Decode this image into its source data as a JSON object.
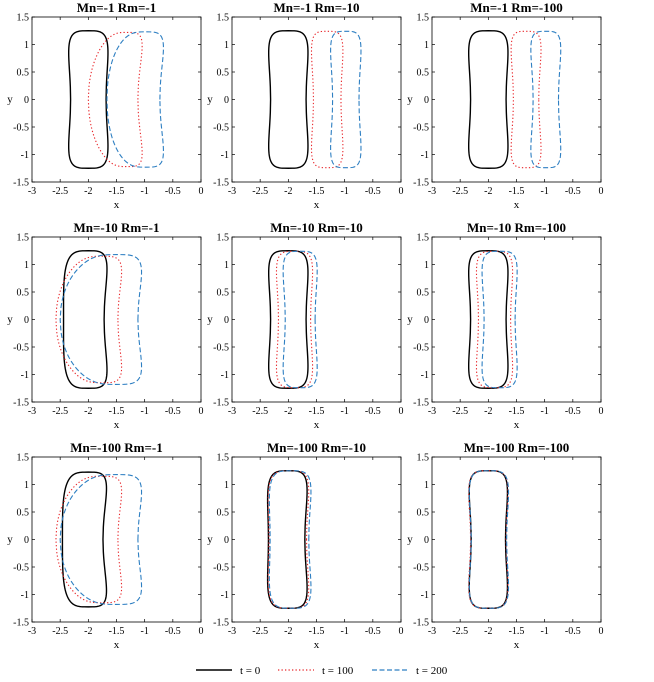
{
  "legend": {
    "placement": "bottom-center",
    "entries": [
      {
        "label": "t = 0",
        "color": "#000000",
        "dash": "solid"
      },
      {
        "label": "t = 100",
        "color": "#e8262a",
        "dash": "dotted"
      },
      {
        "label": "t = 200",
        "color": "#2e7fc2",
        "dash": "dashed"
      }
    ]
  },
  "chart_data": [
    {
      "type": "line",
      "title": "Mn=-1 Rm=-1",
      "xlabel": "x",
      "ylabel": "y",
      "xlim": [
        -3,
        0
      ],
      "ylim": [
        -1.5,
        1.5
      ],
      "xticks": [
        "-3",
        "-2.5",
        "-2",
        "-1.5",
        "-1",
        "-0.5",
        "0"
      ],
      "yticks": [
        "-1.5",
        "-1",
        "-0.5",
        "0",
        "0.5",
        "1",
        "1.5"
      ],
      "grid": false,
      "series": [
        {
          "name": "t = 0",
          "shape": {
            "cx": -2.0,
            "width": 0.9,
            "height": 2.5,
            "neck": 0.15,
            "bend": 0.0,
            "bulge": 0.0
          }
        },
        {
          "name": "t = 100",
          "shape": {
            "cx": -1.31,
            "width": 0.78,
            "height": 2.44,
            "neck": 0.0,
            "bend": -0.3,
            "bulge": 0.1
          }
        },
        {
          "name": "t = 200",
          "shape": {
            "cx": -0.98,
            "width": 0.88,
            "height": 2.46,
            "neck": 0.0,
            "bend": -0.25,
            "bulge": 0.06
          }
        }
      ]
    },
    {
      "type": "line",
      "title": "Mn=-1 Rm=-10",
      "xlabel": "x",
      "ylabel": "y",
      "xlim": [
        -3,
        0
      ],
      "ylim": [
        -1.5,
        1.5
      ],
      "xticks": [
        "-3",
        "-2.5",
        "-2",
        "-1.5",
        "-1",
        "-0.5",
        "0"
      ],
      "yticks": [
        "-1.5",
        "-1",
        "-0.5",
        "0",
        "0.5",
        "1",
        "1.5"
      ],
      "grid": false,
      "series": [
        {
          "name": "t = 0",
          "shape": {
            "cx": -2.0,
            "width": 0.9,
            "height": 2.5,
            "neck": 0.15,
            "bend": 0.0,
            "bulge": 0.0
          }
        },
        {
          "name": "t = 100",
          "shape": {
            "cx": -1.31,
            "width": 0.74,
            "height": 2.48,
            "neck": 0.14,
            "bend": 0.0,
            "bulge": 0.0
          }
        },
        {
          "name": "t = 200",
          "shape": {
            "cx": -0.98,
            "width": 0.72,
            "height": 2.48,
            "neck": 0.14,
            "bend": 0.0,
            "bulge": 0.0
          }
        }
      ]
    },
    {
      "type": "line",
      "title": "Mn=-1 Rm=-100",
      "xlabel": "x",
      "ylabel": "y",
      "xlim": [
        -3,
        0
      ],
      "ylim": [
        -1.5,
        1.5
      ],
      "xticks": [
        "-3",
        "-2.5",
        "-2",
        "-1.5",
        "-1",
        "-0.5",
        "0"
      ],
      "yticks": [
        "-1.5",
        "-1",
        "-0.5",
        "0",
        "0.5",
        "1",
        "1.5"
      ],
      "grid": false,
      "series": [
        {
          "name": "t = 0",
          "shape": {
            "cx": -2.0,
            "width": 0.9,
            "height": 2.5,
            "neck": 0.15,
            "bend": 0.0,
            "bulge": 0.0
          }
        },
        {
          "name": "t = 100",
          "shape": {
            "cx": -1.33,
            "width": 0.72,
            "height": 2.48,
            "neck": 0.15,
            "bend": 0.0,
            "bulge": 0.0
          }
        },
        {
          "name": "t = 200",
          "shape": {
            "cx": -0.98,
            "width": 0.72,
            "height": 2.48,
            "neck": 0.15,
            "bend": 0.0,
            "bulge": 0.0
          }
        }
      ]
    },
    {
      "type": "line",
      "title": "Mn=-10 Rm=-1",
      "xlabel": "x",
      "ylabel": "y",
      "xlim": [
        -3,
        0
      ],
      "ylim": [
        -1.5,
        1.5
      ],
      "xticks": [
        "-3",
        "-2.5",
        "-2",
        "-1.5",
        "-1",
        "-0.5",
        "0"
      ],
      "yticks": [
        "-1.5",
        "-1",
        "-0.5",
        "0",
        "0.5",
        "1",
        "1.5"
      ],
      "grid": false,
      "series": [
        {
          "name": "t = 0",
          "shape": {
            "cx": -2.0,
            "width": 0.9,
            "height": 2.5,
            "neck": 0.1,
            "bend": -0.08,
            "bulge": 0.0
          }
        },
        {
          "name": "t = 100",
          "shape": {
            "cx": -1.75,
            "width": 0.95,
            "height": 2.3,
            "neck": 0.0,
            "bend": -0.35,
            "bulge": 0.15
          }
        },
        {
          "name": "t = 200",
          "shape": {
            "cx": -1.5,
            "width": 1.2,
            "height": 2.36,
            "neck": 0.0,
            "bend": -0.4,
            "bulge": 0.18
          }
        }
      ]
    },
    {
      "type": "line",
      "title": "Mn=-10 Rm=-10",
      "xlabel": "x",
      "ylabel": "y",
      "xlim": [
        -3,
        0
      ],
      "ylim": [
        -1.5,
        1.5
      ],
      "xticks": [
        "-3",
        "-2.5",
        "-2",
        "-1.5",
        "-1",
        "-0.5",
        "0"
      ],
      "yticks": [
        "-1.5",
        "-1",
        "-0.5",
        "0",
        "0.5",
        "1",
        "1.5"
      ],
      "grid": false,
      "series": [
        {
          "name": "t = 0",
          "shape": {
            "cx": -2.0,
            "width": 0.9,
            "height": 2.5,
            "neck": 0.15,
            "bend": 0.0,
            "bulge": 0.0
          }
        },
        {
          "name": "t = 100",
          "shape": {
            "cx": -1.89,
            "width": 0.84,
            "height": 2.48,
            "neck": 0.15,
            "bend": 0.0,
            "bulge": 0.0
          }
        },
        {
          "name": "t = 200",
          "shape": {
            "cx": -1.79,
            "width": 0.8,
            "height": 2.48,
            "neck": 0.15,
            "bend": 0.0,
            "bulge": 0.0
          }
        }
      ]
    },
    {
      "type": "line",
      "title": "Mn=-10 Rm=-100",
      "xlabel": "x",
      "ylabel": "y",
      "xlim": [
        -3,
        0
      ],
      "ylim": [
        -1.5,
        1.5
      ],
      "xticks": [
        "-3",
        "-2.5",
        "-2",
        "-1.5",
        "-1",
        "-0.5",
        "0"
      ],
      "yticks": [
        "-1.5",
        "-1",
        "-0.5",
        "0",
        "0.5",
        "1",
        "1.5"
      ],
      "grid": false,
      "series": [
        {
          "name": "t = 0",
          "shape": {
            "cx": -2.0,
            "width": 0.9,
            "height": 2.5,
            "neck": 0.15,
            "bend": 0.0,
            "bulge": 0.0
          }
        },
        {
          "name": "t = 100",
          "shape": {
            "cx": -1.89,
            "width": 0.84,
            "height": 2.48,
            "neck": 0.15,
            "bend": 0.0,
            "bulge": 0.0
          }
        },
        {
          "name": "t = 200",
          "shape": {
            "cx": -1.8,
            "width": 0.82,
            "height": 2.48,
            "neck": 0.15,
            "bend": 0.0,
            "bulge": 0.0
          }
        }
      ]
    },
    {
      "type": "line",
      "title": "Mn=-100 Rm=-1",
      "xlabel": "x",
      "ylabel": "y",
      "xlim": [
        -3,
        0
      ],
      "ylim": [
        -1.5,
        1.5
      ],
      "xticks": [
        "-3",
        "-2.5",
        "-2",
        "-1.5",
        "-1",
        "-0.5",
        "0"
      ],
      "yticks": [
        "-1.5",
        "-1",
        "-0.5",
        "0",
        "0.5",
        "1",
        "1.5"
      ],
      "grid": false,
      "series": [
        {
          "name": "t = 0",
          "shape": {
            "cx": -2.0,
            "width": 0.9,
            "height": 2.45,
            "neck": 0.1,
            "bend": -0.1,
            "bulge": 0.0
          }
        },
        {
          "name": "t = 100",
          "shape": {
            "cx": -1.75,
            "width": 0.95,
            "height": 2.3,
            "neck": 0.0,
            "bend": -0.35,
            "bulge": 0.15
          }
        },
        {
          "name": "t = 200",
          "shape": {
            "cx": -1.5,
            "width": 1.2,
            "height": 2.36,
            "neck": 0.0,
            "bend": -0.4,
            "bulge": 0.18
          }
        }
      ]
    },
    {
      "type": "line",
      "title": "Mn=-100 Rm=-10",
      "xlabel": "x",
      "ylabel": "y",
      "xlim": [
        -3,
        0
      ],
      "ylim": [
        -1.5,
        1.5
      ],
      "xticks": [
        "-3",
        "-2.5",
        "-2",
        "-1.5",
        "-1",
        "-0.5",
        "0"
      ],
      "yticks": [
        "-1.5",
        "-1",
        "-0.5",
        "0",
        "0.5",
        "1",
        "1.5"
      ],
      "grid": false,
      "series": [
        {
          "name": "t = 0",
          "shape": {
            "cx": -2.0,
            "width": 0.88,
            "height": 2.5,
            "neck": 0.13,
            "bend": -0.03,
            "bulge": 0.0
          }
        },
        {
          "name": "t = 100",
          "shape": {
            "cx": -1.98,
            "width": 0.9,
            "height": 2.5,
            "neck": 0.13,
            "bend": -0.03,
            "bulge": 0.0
          }
        },
        {
          "name": "t = 200",
          "shape": {
            "cx": -1.95,
            "width": 0.92,
            "height": 2.5,
            "neck": 0.13,
            "bend": -0.03,
            "bulge": 0.0
          }
        }
      ]
    },
    {
      "type": "line",
      "title": "Mn=-100 Rm=-100",
      "xlabel": "x",
      "ylabel": "y",
      "xlim": [
        -3,
        0
      ],
      "ylim": [
        -1.5,
        1.5
      ],
      "xticks": [
        "-3",
        "-2.5",
        "-2",
        "-1.5",
        "-1",
        "-0.5",
        "0"
      ],
      "yticks": [
        "-1.5",
        "-1",
        "-0.5",
        "0",
        "0.5",
        "1",
        "1.5"
      ],
      "grid": false,
      "series": [
        {
          "name": "t = 0",
          "shape": {
            "cx": -2.0,
            "width": 0.88,
            "height": 2.5,
            "neck": 0.15,
            "bend": 0.0,
            "bulge": 0.0
          }
        },
        {
          "name": "t = 100",
          "shape": {
            "cx": -2.0,
            "width": 0.9,
            "height": 2.5,
            "neck": 0.15,
            "bend": 0.0,
            "bulge": 0.0
          }
        },
        {
          "name": "t = 200",
          "shape": {
            "cx": -1.99,
            "width": 0.9,
            "height": 2.5,
            "neck": 0.15,
            "bend": 0.0,
            "bulge": 0.0
          }
        }
      ]
    }
  ]
}
